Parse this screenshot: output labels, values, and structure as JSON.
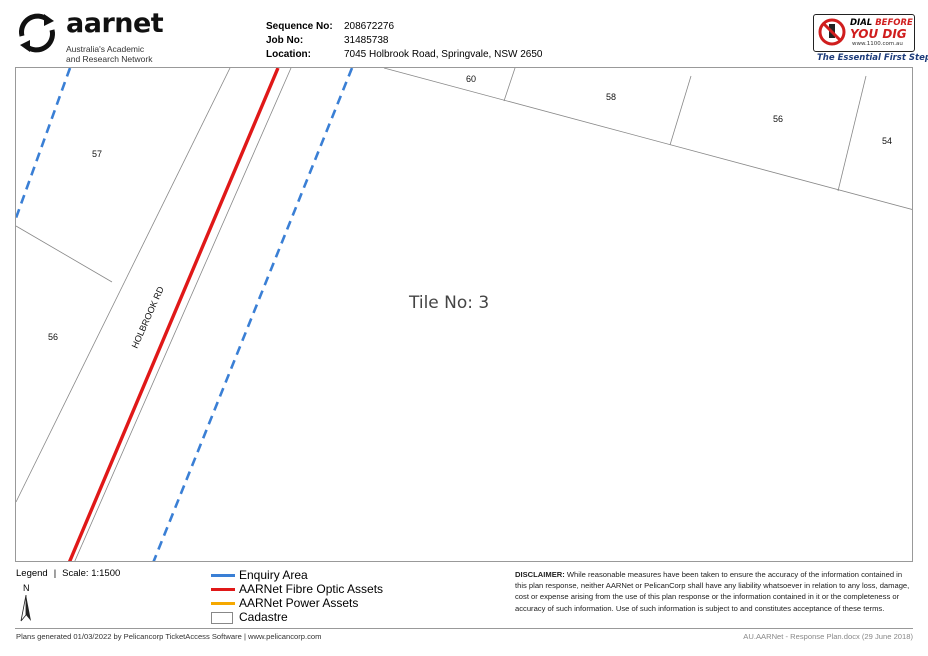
{
  "header": {
    "brand": "aarnet",
    "brand_sub_1": "Australia's Academic",
    "brand_sub_2": "and Research Network",
    "fields": [
      {
        "label": "Sequence No:",
        "value": "208672276"
      },
      {
        "label": "Job No:",
        "value": "31485738"
      },
      {
        "label": "Location:",
        "value": "7045 Holbrook Road, Springvale, NSW  2650"
      }
    ],
    "dbyd": {
      "line1_a": "DIAL ",
      "line1_b": "BEFORE",
      "line2": "YOU DIG",
      "url": "www.1100.com.au",
      "tagline": "The Essential First Step."
    }
  },
  "map": {
    "tile_label": "Tile No: 3",
    "road_label": "HOLBROOK RD",
    "lot_labels": {
      "lot_60": "60",
      "lot_58": "58",
      "lot_56_right": "56",
      "lot_54": "54",
      "lot_57": "57",
      "lot_56_left": "56"
    },
    "colors": {
      "enquiry": "#3a7fd5",
      "fibre": "#e01818",
      "power": "#f5a800",
      "cadastre": "#888888"
    }
  },
  "legend": {
    "title": "Legend",
    "scale": "Scale: 1:1500",
    "north": "N",
    "items": [
      {
        "label": "Enquiry Area",
        "color": "#3a7fd5"
      },
      {
        "label": "AARNet Fibre Optic Assets",
        "color": "#e01818"
      },
      {
        "label": "AARNet Power Assets",
        "color": "#f5a800"
      },
      {
        "label": "Cadastre",
        "color": "#888888"
      }
    ]
  },
  "disclaimer": {
    "heading": "DISCLAIMER:",
    "text": " While reasonable measures have been taken to ensure the accuracy of the information contained in this plan response, neither AARNet or PelicanCorp shall have any liability whatsoever in relation to any loss, damage, cost or expense arising from the use of this plan response or the information contained in it or the completeness or accuracy of such information. Use of such information is subject to and constitutes acceptance of these terms."
  },
  "footer": {
    "left": "Plans generated 01/03/2022 by Pelicancorp TicketAccess Software  |  www.pelicancorp.com",
    "right_a": "AU.AARNet - Response Plan.docx",
    "right_b": " (29 June 2018)"
  }
}
